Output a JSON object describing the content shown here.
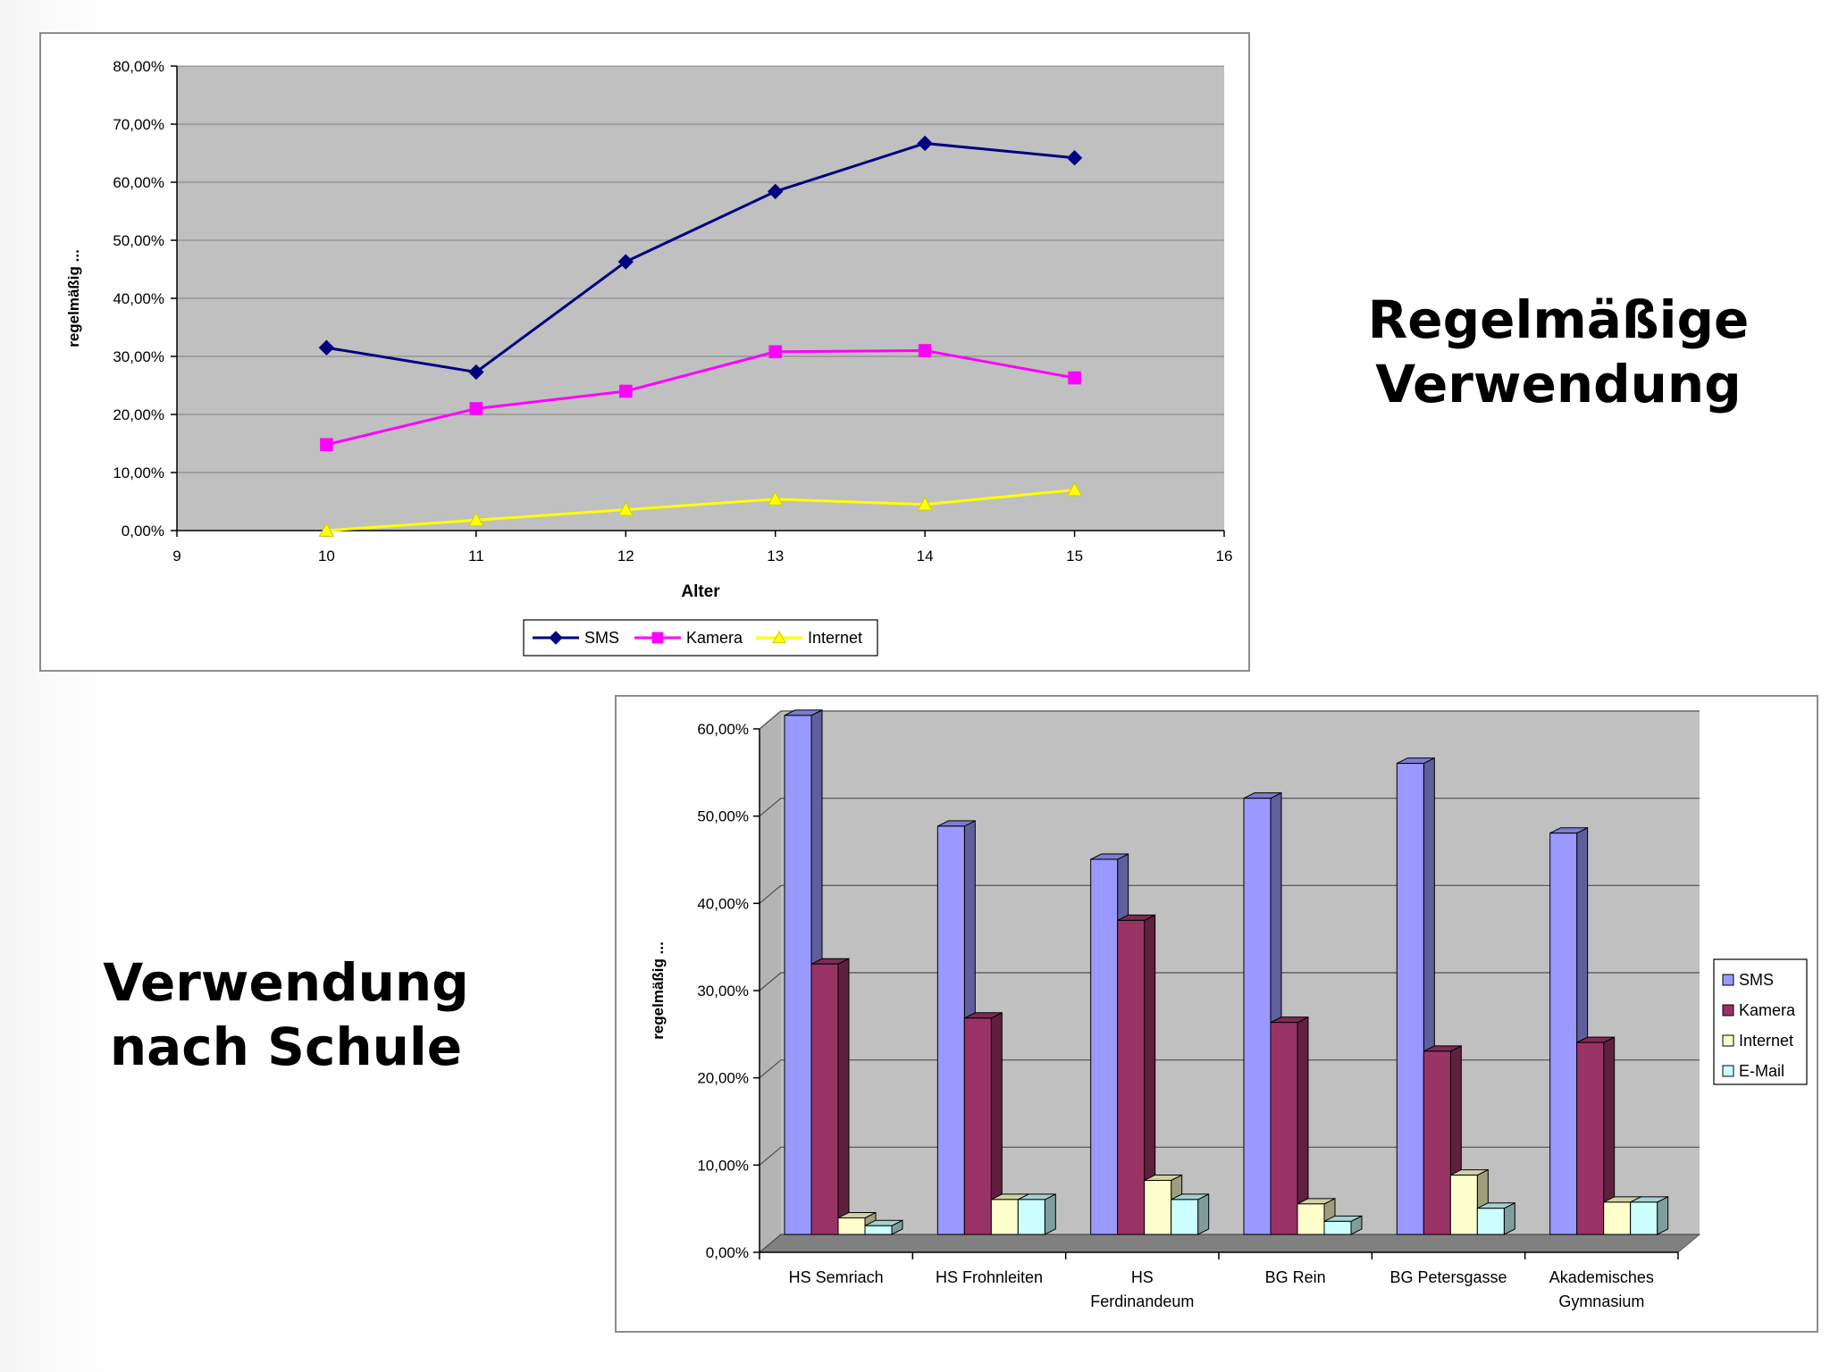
{
  "headings": {
    "top_right": [
      "Regelmäßige",
      "Verwendung"
    ],
    "bottom_left": [
      "Verwendung",
      "nach Schule"
    ]
  },
  "chart_data": [
    {
      "type": "line",
      "title": "",
      "xlabel": "Alter",
      "ylabel": "regelmäßig ...",
      "xlim": [
        9,
        16
      ],
      "x_ticks": [
        "9",
        "10",
        "11",
        "12",
        "13",
        "14",
        "15",
        "16"
      ],
      "ylim": [
        0,
        0.8
      ],
      "y_ticks": [
        "0,00%",
        "10,00%",
        "20,00%",
        "30,00%",
        "40,00%",
        "50,00%",
        "60,00%",
        "70,00%",
        "80,00%"
      ],
      "grid": true,
      "plot_background": "#c0c0c0",
      "legend_position": "bottom",
      "x": [
        10,
        11,
        12,
        13,
        14,
        15
      ],
      "series": [
        {
          "name": "SMS",
          "color": "#000080",
          "marker": "diamond",
          "values": [
            0.315,
            0.273,
            0.463,
            0.584,
            0.667,
            0.642
          ]
        },
        {
          "name": "Kamera",
          "color": "#ff00ff",
          "marker": "square",
          "values": [
            0.148,
            0.21,
            0.24,
            0.308,
            0.31,
            0.263
          ]
        },
        {
          "name": "Internet",
          "color": "#ffff00",
          "marker": "triangle",
          "values": [
            0.0,
            0.018,
            0.036,
            0.054,
            0.045,
            0.07
          ]
        }
      ]
    },
    {
      "type": "bar",
      "style": "3d-clustered",
      "title": "",
      "xlabel": "",
      "ylabel": "regelmäßig ...",
      "ylim": [
        0,
        0.6
      ],
      "y_ticks": [
        "0,00%",
        "10,00%",
        "20,00%",
        "30,00%",
        "40,00%",
        "50,00%",
        "60,00%"
      ],
      "grid": true,
      "plot_background": "#c0c0c0",
      "legend_position": "right",
      "categories": [
        [
          "HS Semriach"
        ],
        [
          "HS Frohnleiten"
        ],
        [
          "HS",
          "Ferdinandeum"
        ],
        [
          "BG Rein"
        ],
        [
          "BG Petersgasse"
        ],
        [
          "Akademisches",
          "Gymnasium"
        ]
      ],
      "series": [
        {
          "name": "SMS",
          "color": "#9999ff",
          "values": [
            0.595,
            0.468,
            0.43,
            0.5,
            0.54,
            0.46
          ]
        },
        {
          "name": "Kamera",
          "color": "#993366",
          "values": [
            0.31,
            0.248,
            0.36,
            0.243,
            0.21,
            0.22
          ]
        },
        {
          "name": "Internet",
          "color": "#ffffcc",
          "values": [
            0.019,
            0.04,
            0.062,
            0.035,
            0.068,
            0.037
          ]
        },
        {
          "name": "E-Mail",
          "color": "#ccffff",
          "values": [
            0.01,
            0.04,
            0.04,
            0.015,
            0.03,
            0.037
          ]
        }
      ]
    }
  ]
}
